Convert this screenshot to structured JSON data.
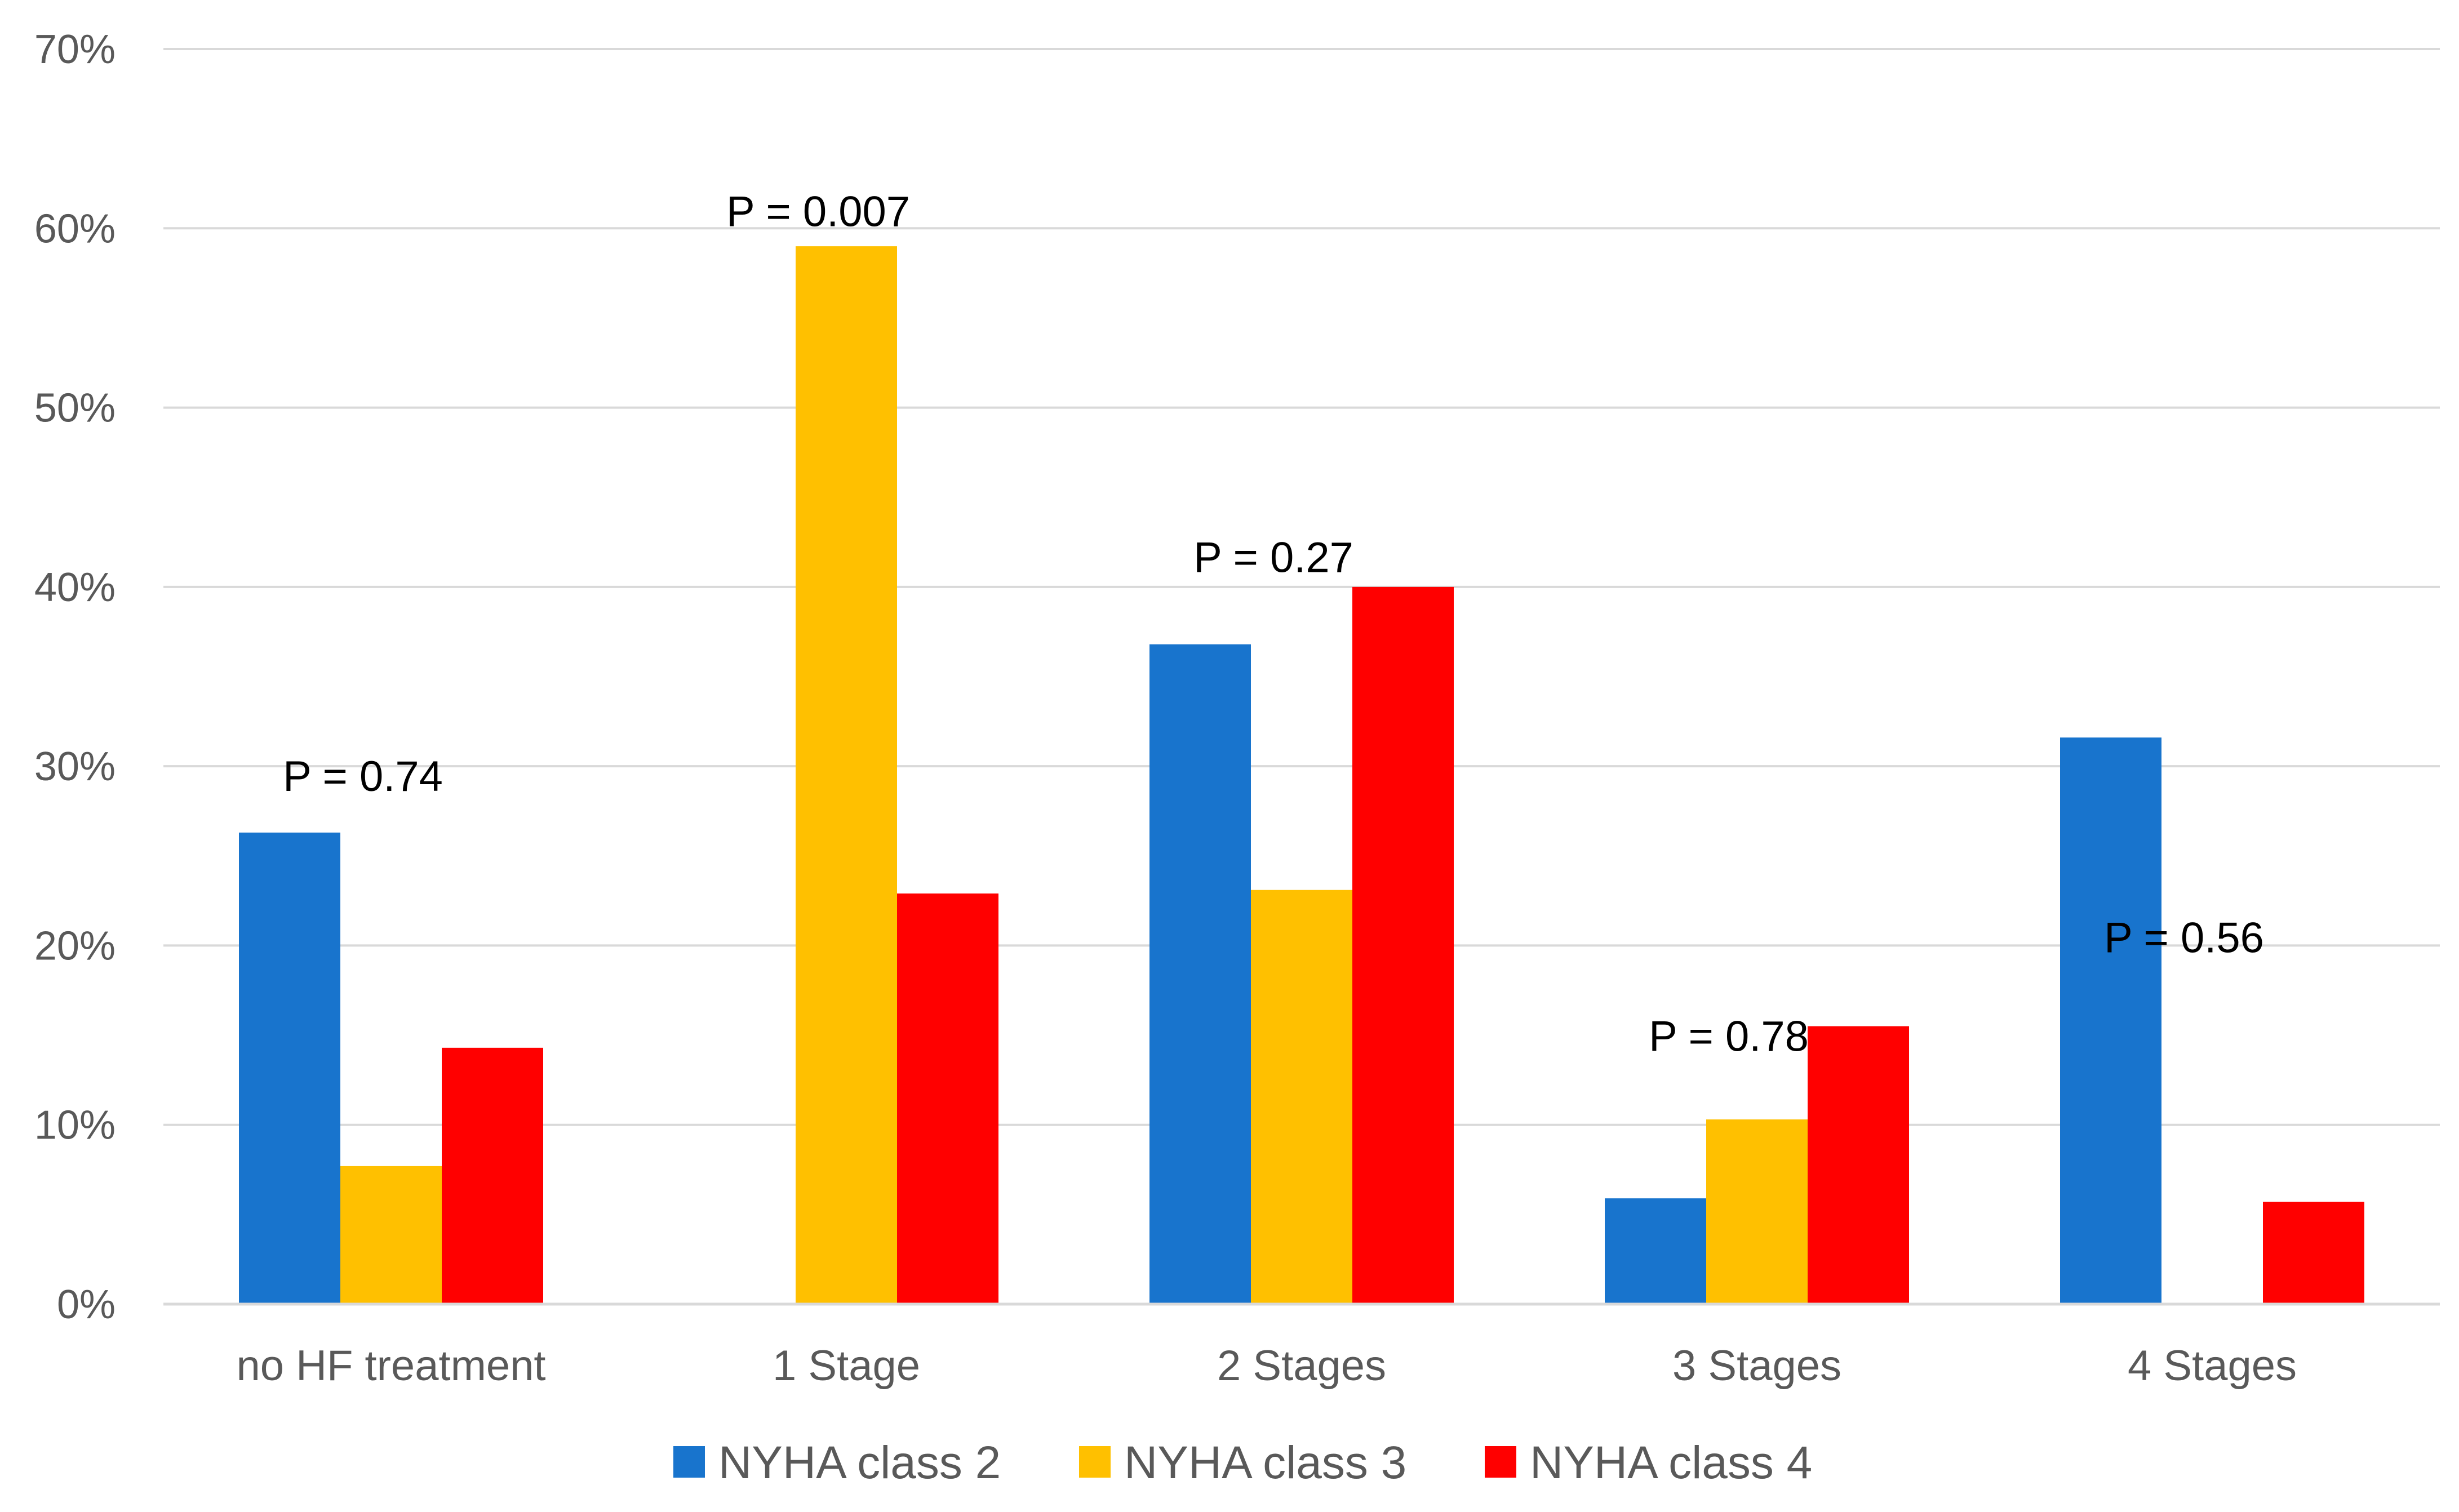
{
  "chart_data": {
    "type": "bar",
    "title": "",
    "xlabel": "",
    "ylabel": "",
    "ylim": [
      0,
      0.7
    ],
    "y_ticks": [
      {
        "value": 0.0,
        "label": "0%"
      },
      {
        "value": 0.1,
        "label": "10%"
      },
      {
        "value": 0.2,
        "label": "20%"
      },
      {
        "value": 0.3,
        "label": "30%"
      },
      {
        "value": 0.4,
        "label": "40%"
      },
      {
        "value": 0.5,
        "label": "50%"
      },
      {
        "value": 0.6,
        "label": "60%"
      },
      {
        "value": 0.7,
        "label": "70%"
      }
    ],
    "grid": true,
    "legend_position": "bottom",
    "categories": [
      "no HF treatment",
      "1 Stage",
      "2 Stages",
      "3 Stages",
      "4 Stages"
    ],
    "series": [
      {
        "name": "NYHA class 2",
        "color": "#1874CD",
        "values": [
          0.263,
          0.0,
          0.368,
          0.059,
          0.316
        ]
      },
      {
        "name": "NYHA class 3",
        "color": "#FFC000",
        "values": [
          0.077,
          0.59,
          0.231,
          0.103,
          0.0
        ]
      },
      {
        "name": "NYHA class 4",
        "color": "#FF0000",
        "values": [
          0.143,
          0.229,
          0.4,
          0.155,
          0.057
        ]
      }
    ],
    "annotations": [
      {
        "category": "no HF treatment",
        "text": "P = 0.74",
        "y": 0.295
      },
      {
        "category": "1 Stage",
        "text": "P = 0.007",
        "y": 0.61
      },
      {
        "category": "2 Stages",
        "text": "P = 0.27",
        "y": 0.417
      },
      {
        "category": "3 Stages",
        "text": "P = 0.78",
        "y": 0.15
      },
      {
        "category": "4 Stages",
        "text": "P = 0.56",
        "y": 0.205
      }
    ]
  }
}
